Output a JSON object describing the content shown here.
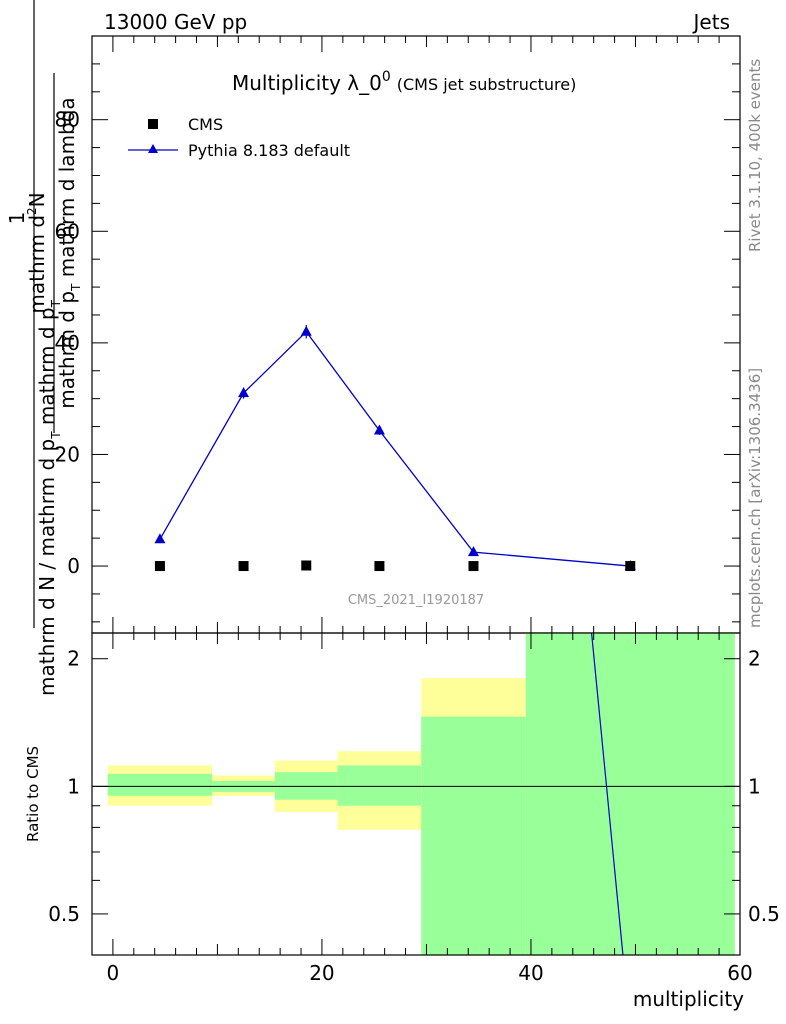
{
  "header": {
    "left": "13000 GeV pp",
    "right": "Jets"
  },
  "side_labels": {
    "rivet": "Rivet 3.1.10,  400k events",
    "mcplots": "mcplots.cern.ch [arXiv:1306.3436]"
  },
  "chart_data": [
    {
      "type": "scatter",
      "title_main": "Multiplicity λ_0",
      "title_sup": "0",
      "title_sub": "(CMS jet substructure)",
      "ylabel_numerator_top": "mathrm d",
      "ylabel_numerator_sup": "2",
      "ylabel_numerator_end": "N",
      "ylabel_denominator": "mathrm d p",
      "ylabel_denominator_sub": "T",
      "ylabel_denominator_end": " mathrm d lambda",
      "ylabel_prefix_num": "1",
      "ylabel_prefix_den": "mathrm d N / mathrm d p",
      "ylabel_prefix_den_sub": "T",
      "ylabel_prefix_den_end": " mathrm d p",
      "ylabel_prefix_den_sub2": "T",
      "xlim": [
        -2,
        60
      ],
      "ylim": [
        -12,
        95
      ],
      "yticks": [
        0,
        20,
        40,
        60,
        80
      ],
      "watermark": "CMS_2021_I1920187",
      "legend": {
        "placement": "top-left",
        "entries": [
          "CMS",
          "Pythia 8.183 default"
        ]
      },
      "series": [
        {
          "name": "CMS",
          "marker": "square",
          "color": "#000000",
          "x": [
            4.5,
            12.5,
            18.5,
            25.5,
            34.5,
            49.5
          ],
          "y": [
            0,
            0,
            0.1,
            0,
            0,
            0
          ]
        },
        {
          "name": "Pythia 8.183 default",
          "marker": "triangle",
          "color": "#0000cc",
          "x": [
            4.5,
            12.5,
            18.5,
            25.5,
            34.5,
            49.5
          ],
          "y": [
            4.8,
            31.0,
            42.0,
            24.3,
            2.5,
            0.0
          ],
          "yerr": [
            0.3,
            1.0,
            1.2,
            0.8,
            0.2,
            0.05
          ]
        }
      ]
    },
    {
      "type": "ratio",
      "ylabel": "Ratio to CMS",
      "xlabel": "multiplicity",
      "ylim_log": [
        0.4,
        2.3
      ],
      "yticks": [
        0.5,
        1,
        2
      ],
      "xticks": [
        0,
        20,
        40,
        60
      ],
      "xlim": [
        -2,
        60
      ],
      "reference_line": 1,
      "colors": {
        "stat_band": "#99ff99",
        "syst_band": "#ffff99",
        "mc_line": "#0000cc"
      },
      "bins": [
        {
          "lo": -0.5,
          "hi": 9.5,
          "green": [
            0.95,
            1.07
          ],
          "yellow": [
            0.9,
            1.12
          ]
        },
        {
          "lo": 9.5,
          "hi": 15.5,
          "green": [
            0.97,
            1.03
          ],
          "yellow": [
            0.95,
            1.06
          ]
        },
        {
          "lo": 15.5,
          "hi": 21.5,
          "green": [
            0.93,
            1.08
          ],
          "yellow": [
            0.87,
            1.15
          ]
        },
        {
          "lo": 21.5,
          "hi": 29.5,
          "green": [
            0.9,
            1.12
          ],
          "yellow": [
            0.79,
            1.21
          ]
        },
        {
          "lo": 29.5,
          "hi": 39.5,
          "green": [
            0.39,
            1.46
          ],
          "yellow": [
            0.64,
            1.8
          ]
        },
        {
          "lo": 39.5,
          "hi": 59.5,
          "green": [
            0.3,
            3.0
          ],
          "yellow": [
            0.3,
            3.0
          ]
        }
      ],
      "mc_ratio_line": {
        "x": [
          45.8,
          48.8
        ],
        "y": [
          2.3,
          0.4
        ]
      }
    }
  ]
}
